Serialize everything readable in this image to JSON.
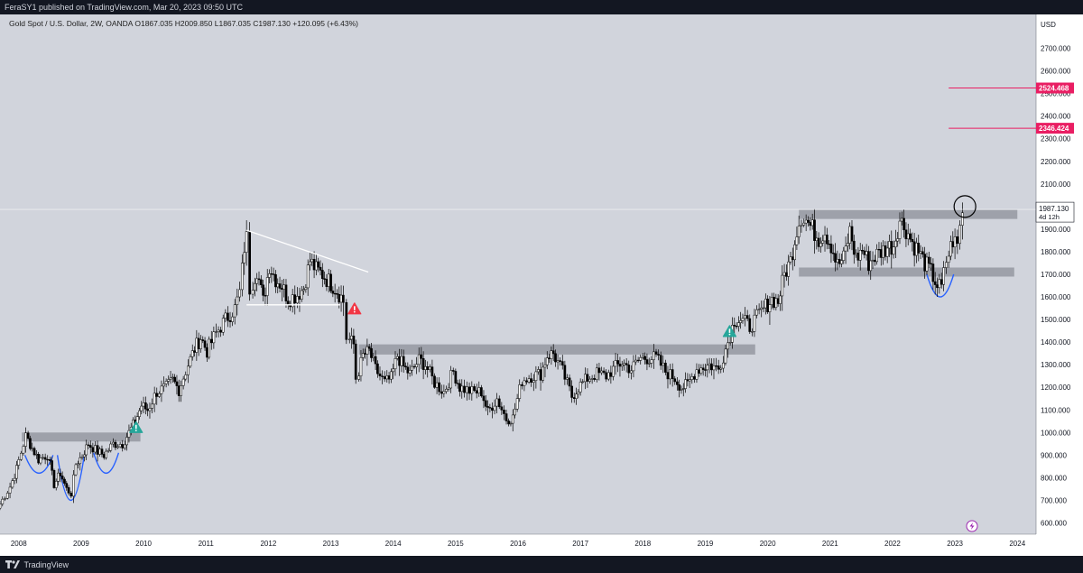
{
  "header": {
    "published_text": "FeraSY1 published on TradingView.com, Mar 20, 2023 09:50 UTC"
  },
  "footer": {
    "brand": "TradingView"
  },
  "chart_data": {
    "type": "candlestick",
    "symbol_line": "Gold Spot / U.S. Dollar, 2W, OANDA  O1867.035  H2009.850  L1867.035  C1987.130  +120.095 (+6.43%)",
    "currency_label": "USD",
    "ylim": [
      550,
      2850
    ],
    "x_range": [
      2007.7,
      2024.3
    ],
    "y_ticks": [
      "2700.000",
      "2600.000",
      "2500.000",
      "2400.000",
      "2300.000",
      "2200.000",
      "2100.000",
      "2000.000",
      "1900.000",
      "1800.000",
      "1700.000",
      "1600.000",
      "1500.000",
      "1400.000",
      "1300.000",
      "1200.000",
      "1100.000",
      "1000.000",
      "900.000",
      "800.000",
      "700.000",
      "600.000"
    ],
    "x_ticks": [
      "2008",
      "2009",
      "2010",
      "2011",
      "2012",
      "2013",
      "2014",
      "2015",
      "2016",
      "2017",
      "2018",
      "2019",
      "2020",
      "2021",
      "2022",
      "2023",
      "2024"
    ],
    "last_price": {
      "label": "1987.130",
      "countdown": "4d 12h",
      "value": 1987.13
    },
    "price_lines": [
      {
        "label": "2524.468",
        "value": 2524.468,
        "from": 2022.9,
        "color": "#e91e63"
      },
      {
        "label": "2346.424",
        "value": 2346.424,
        "from": 2022.9,
        "color": "#e91e63"
      }
    ],
    "zones": [
      {
        "x0": 2008.05,
        "x1": 2009.95,
        "y0": 960,
        "y1": 1000
      },
      {
        "x0": 2013.45,
        "x1": 2019.8,
        "y0": 1345,
        "y1": 1390
      },
      {
        "x0": 2020.5,
        "x1": 2023.95,
        "y0": 1690,
        "y1": 1730
      },
      {
        "x0": 2020.5,
        "x1": 2024.0,
        "y0": 1945,
        "y1": 1985
      }
    ],
    "trendlines": [
      {
        "x0": 2011.65,
        "y0": 1895,
        "x1": 2013.6,
        "y1": 1710
      },
      {
        "x0": 2011.65,
        "y0": 1565,
        "x1": 2013.15,
        "y1": 1565
      }
    ],
    "curves": [
      {
        "x0": 2008.1,
        "x1": 2008.55,
        "ytop": 900,
        "ybot": 820
      },
      {
        "x0": 2008.62,
        "x1": 2009.05,
        "ytop": 900,
        "ybot": 700
      },
      {
        "x0": 2009.2,
        "x1": 2009.6,
        "ytop": 910,
        "ybot": 820
      },
      {
        "x0": 2022.55,
        "x1": 2022.98,
        "ytop": 1700,
        "ybot": 1600
      }
    ],
    "markers": [
      {
        "x": 2009.88,
        "y": 1020,
        "kind": "up",
        "color": "#26a69a"
      },
      {
        "x": 2013.38,
        "y": 1545,
        "kind": "down",
        "color": "#f23645"
      },
      {
        "x": 2019.39,
        "y": 1445,
        "kind": "up",
        "color": "#26a69a"
      }
    ],
    "circle": {
      "x": 2023.16,
      "y": 2000
    },
    "series": [
      [
        2007.7,
        665
      ],
      [
        2007.9,
        760
      ],
      [
        2008.0,
        840
      ],
      [
        2008.15,
        985
      ],
      [
        2008.25,
        930
      ],
      [
        2008.35,
        880
      ],
      [
        2008.5,
        900
      ],
      [
        2008.6,
        770
      ],
      [
        2008.7,
        820
      ],
      [
        2008.8,
        750
      ],
      [
        2008.88,
        730
      ],
      [
        2008.95,
        860
      ],
      [
        2009.05,
        900
      ],
      [
        2009.15,
        950
      ],
      [
        2009.3,
        915
      ],
      [
        2009.4,
        900
      ],
      [
        2009.55,
        950
      ],
      [
        2009.7,
        950
      ],
      [
        2009.8,
        1000
      ],
      [
        2009.9,
        1050
      ],
      [
        2010.0,
        1120
      ],
      [
        2010.1,
        1100
      ],
      [
        2010.25,
        1180
      ],
      [
        2010.4,
        1200
      ],
      [
        2010.5,
        1230
      ],
      [
        2010.6,
        1190
      ],
      [
        2010.75,
        1300
      ],
      [
        2010.85,
        1370
      ],
      [
        2010.95,
        1420
      ],
      [
        2011.05,
        1360
      ],
      [
        2011.2,
        1440
      ],
      [
        2011.35,
        1500
      ],
      [
        2011.5,
        1550
      ],
      [
        2011.58,
        1620
      ],
      [
        2011.65,
        1820
      ],
      [
        2011.7,
        1860
      ],
      [
        2011.75,
        1640
      ],
      [
        2011.85,
        1720
      ],
      [
        2011.95,
        1580
      ],
      [
        2012.05,
        1740
      ],
      [
        2012.15,
        1680
      ],
      [
        2012.25,
        1650
      ],
      [
        2012.35,
        1590
      ],
      [
        2012.5,
        1610
      ],
      [
        2012.6,
        1640
      ],
      [
        2012.7,
        1760
      ],
      [
        2012.8,
        1720
      ],
      [
        2012.9,
        1700
      ],
      [
        2013.0,
        1670
      ],
      [
        2013.1,
        1640
      ],
      [
        2013.2,
        1600
      ],
      [
        2013.25,
        1580
      ],
      [
        2013.3,
        1420
      ],
      [
        2013.4,
        1390
      ],
      [
        2013.45,
        1240
      ],
      [
        2013.55,
        1340
      ],
      [
        2013.65,
        1360
      ],
      [
        2013.75,
        1280
      ],
      [
        2013.9,
        1220
      ],
      [
        2014.0,
        1240
      ],
      [
        2014.1,
        1340
      ],
      [
        2014.2,
        1290
      ],
      [
        2014.3,
        1260
      ],
      [
        2014.45,
        1320
      ],
      [
        2014.55,
        1300
      ],
      [
        2014.7,
        1220
      ],
      [
        2014.85,
        1180
      ],
      [
        2015.0,
        1270
      ],
      [
        2015.1,
        1200
      ],
      [
        2015.3,
        1180
      ],
      [
        2015.45,
        1180
      ],
      [
        2015.55,
        1090
      ],
      [
        2015.7,
        1150
      ],
      [
        2015.85,
        1060
      ],
      [
        2015.95,
        1065
      ],
      [
        2016.1,
        1230
      ],
      [
        2016.25,
        1250
      ],
      [
        2016.4,
        1260
      ],
      [
        2016.5,
        1340
      ],
      [
        2016.6,
        1350
      ],
      [
        2016.75,
        1270
      ],
      [
        2016.9,
        1160
      ],
      [
        2017.0,
        1200
      ],
      [
        2017.15,
        1240
      ],
      [
        2017.3,
        1260
      ],
      [
        2017.45,
        1250
      ],
      [
        2017.6,
        1290
      ],
      [
        2017.7,
        1310
      ],
      [
        2017.85,
        1280
      ],
      [
        2018.0,
        1330
      ],
      [
        2018.1,
        1330
      ],
      [
        2018.25,
        1330
      ],
      [
        2018.4,
        1270
      ],
      [
        2018.55,
        1240
      ],
      [
        2018.65,
        1200
      ],
      [
        2018.75,
        1210
      ],
      [
        2018.9,
        1280
      ],
      [
        2019.0,
        1290
      ],
      [
        2019.1,
        1300
      ],
      [
        2019.25,
        1280
      ],
      [
        2019.4,
        1400
      ],
      [
        2019.5,
        1500
      ],
      [
        2019.6,
        1500
      ],
      [
        2019.75,
        1470
      ],
      [
        2019.9,
        1520
      ],
      [
        2020.0,
        1560
      ],
      [
        2020.1,
        1590
      ],
      [
        2020.2,
        1580
      ],
      [
        2020.3,
        1700
      ],
      [
        2020.4,
        1760
      ],
      [
        2020.5,
        1900
      ],
      [
        2020.58,
        1960
      ],
      [
        2020.65,
        1940
      ],
      [
        2020.75,
        1900
      ],
      [
        2020.85,
        1860
      ],
      [
        2020.95,
        1890
      ],
      [
        2021.05,
        1830
      ],
      [
        2021.15,
        1740
      ],
      [
        2021.25,
        1770
      ],
      [
        2021.35,
        1890
      ],
      [
        2021.45,
        1770
      ],
      [
        2021.55,
        1810
      ],
      [
        2021.65,
        1750
      ],
      [
        2021.75,
        1780
      ],
      [
        2021.85,
        1800
      ],
      [
        2021.95,
        1820
      ],
      [
        2022.05,
        1830
      ],
      [
        2022.15,
        1940
      ],
      [
        2022.25,
        1900
      ],
      [
        2022.35,
        1840
      ],
      [
        2022.45,
        1800
      ],
      [
        2022.55,
        1750
      ],
      [
        2022.65,
        1710
      ],
      [
        2022.75,
        1650
      ],
      [
        2022.82,
        1640
      ],
      [
        2022.9,
        1760
      ],
      [
        2023.0,
        1850
      ],
      [
        2023.08,
        1830
      ],
      [
        2023.16,
        1987
      ]
    ]
  }
}
